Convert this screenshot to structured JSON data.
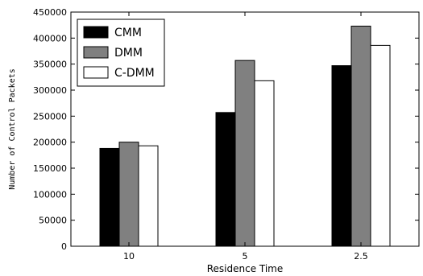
{
  "chart_data": {
    "type": "bar",
    "title": "",
    "xlabel": "Residence Time",
    "ylabel": "Number of Control Packets",
    "categories": [
      "10",
      "5",
      "2.5"
    ],
    "series": [
      {
        "name": "CMM",
        "values": [
          188000,
          257000,
          347000
        ],
        "color": "#000000"
      },
      {
        "name": "DMM",
        "values": [
          200000,
          357000,
          423000
        ],
        "color": "#808080"
      },
      {
        "name": "C-DMM",
        "values": [
          193000,
          318000,
          386000
        ],
        "color": "#ffffff"
      }
    ],
    "ylim": [
      0,
      450000
    ],
    "yticks": [
      0,
      50000,
      100000,
      150000,
      200000,
      250000,
      300000,
      350000,
      400000,
      450000
    ],
    "grid": false,
    "legend_position": "top-left"
  }
}
